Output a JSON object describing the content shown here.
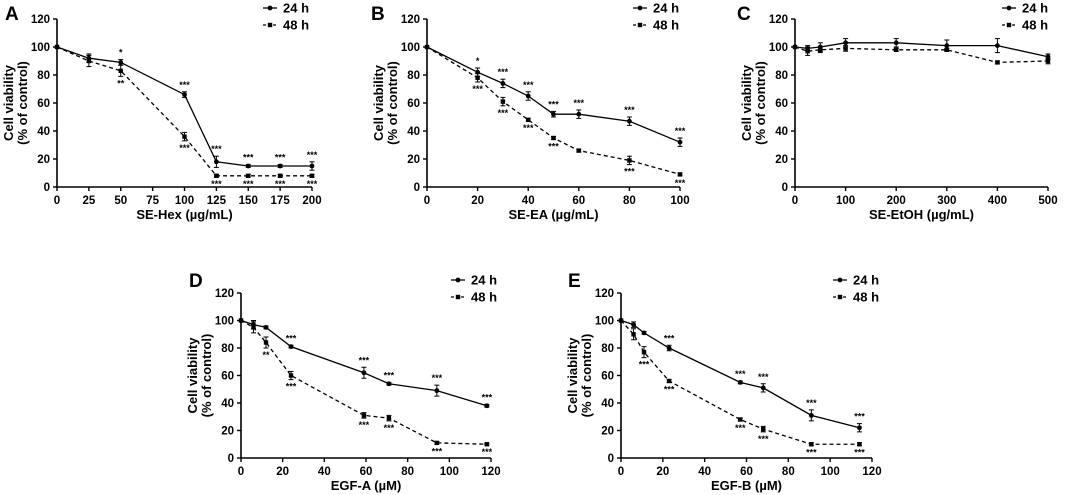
{
  "series_names": [
    "24 h",
    "48 h"
  ],
  "chart_data": [
    {
      "panel": "A",
      "type": "line",
      "xlabel": "SE-Hex (µg/mL)",
      "ylabel_line1": "Cell viability",
      "ylabel_line2": "(% of control)",
      "xlim": [
        0,
        200
      ],
      "ylim": [
        0,
        120
      ],
      "xticks": [
        0,
        25,
        50,
        75,
        100,
        125,
        150,
        175,
        200
      ],
      "yticks": [
        0,
        20,
        40,
        60,
        80,
        100,
        120
      ],
      "series": [
        {
          "name": "24 h",
          "x": [
            0,
            25,
            50,
            100,
            125,
            150,
            175,
            200
          ],
          "y": [
            100,
            92,
            89,
            66,
            18,
            15,
            15,
            15
          ],
          "err": [
            0,
            3,
            2,
            2,
            4,
            1,
            1,
            3
          ],
          "sig": [
            "",
            "",
            "*",
            "***",
            "***",
            "***",
            "***",
            "***"
          ]
        },
        {
          "name": "48 h",
          "x": [
            0,
            25,
            50,
            100,
            125,
            150,
            175,
            200
          ],
          "y": [
            100,
            90,
            83,
            36,
            8,
            8,
            8,
            8
          ],
          "err": [
            0,
            4,
            4,
            3,
            1,
            1,
            1,
            1
          ],
          "sig": [
            "",
            "",
            "**",
            "***",
            "***",
            "***",
            "***",
            "***"
          ]
        }
      ]
    },
    {
      "panel": "B",
      "type": "line",
      "xlabel": "SE-EA (µg/mL)",
      "ylabel_line1": "Cell viability",
      "ylabel_line2": "(% of control)",
      "xlim": [
        0,
        100
      ],
      "ylim": [
        0,
        120
      ],
      "xticks": [
        0,
        20,
        40,
        60,
        80,
        100
      ],
      "yticks": [
        0,
        20,
        40,
        60,
        80,
        100,
        120
      ],
      "series": [
        {
          "name": "24 h",
          "x": [
            0,
            20,
            30,
            40,
            50,
            60,
            80,
            100
          ],
          "y": [
            100,
            82,
            74,
            65,
            52,
            52,
            47,
            32
          ],
          "err": [
            0,
            3,
            3,
            3,
            2,
            3,
            3,
            3
          ],
          "sig": [
            "",
            "*",
            "***",
            "***",
            "***",
            "***",
            "***",
            "***"
          ]
        },
        {
          "name": "48 h",
          "x": [
            0,
            20,
            30,
            40,
            50,
            60,
            80,
            100
          ],
          "y": [
            100,
            78,
            61,
            48,
            35,
            26,
            19,
            9
          ],
          "err": [
            0,
            3,
            3,
            1,
            1,
            1,
            3,
            1
          ],
          "sig": [
            "",
            "***",
            "***",
            "***",
            "***",
            "",
            "***",
            "***"
          ]
        }
      ]
    },
    {
      "panel": "C",
      "type": "line",
      "xlabel": "SE-EtOH (µg/mL)",
      "ylabel_line1": "Cell viability",
      "ylabel_line2": "(% of control)",
      "xlim": [
        0,
        500
      ],
      "ylim": [
        0,
        120
      ],
      "xticks": [
        0,
        100,
        200,
        300,
        400,
        500
      ],
      "yticks": [
        0,
        20,
        40,
        60,
        80,
        100,
        120
      ],
      "series": [
        {
          "name": "24 h",
          "x": [
            0,
            25,
            50,
            100,
            200,
            300,
            400,
            500
          ],
          "y": [
            100,
            99,
            100,
            103,
            103,
            101,
            101,
            93
          ],
          "err": [
            0,
            2,
            3,
            3,
            3,
            4,
            5,
            2
          ],
          "sig": [
            "",
            "",
            "",
            "",
            "",
            "",
            "",
            ""
          ]
        },
        {
          "name": "48 h",
          "x": [
            0,
            25,
            50,
            100,
            200,
            300,
            400,
            500
          ],
          "y": [
            100,
            97,
            98,
            99,
            98,
            98,
            89,
            90
          ],
          "err": [
            0,
            3,
            2,
            2,
            1,
            1,
            1,
            2
          ],
          "sig": [
            "",
            "",
            "",
            "",
            "",
            "",
            "",
            ""
          ]
        }
      ]
    },
    {
      "panel": "D",
      "type": "line",
      "xlabel": "EGF-A (µM)",
      "ylabel_line1": "Cell viability",
      "ylabel_line2": "(% of control)",
      "xlim": [
        0,
        120
      ],
      "ylim": [
        0,
        120
      ],
      "xticks": [
        0,
        20,
        40,
        60,
        80,
        100,
        120
      ],
      "yticks": [
        0,
        20,
        40,
        60,
        80,
        100,
        120
      ],
      "series": [
        {
          "name": "24 h",
          "x": [
            0,
            6,
            12,
            24,
            59,
            71,
            94,
            118
          ],
          "y": [
            100,
            97,
            95,
            81,
            62,
            54,
            49,
            38
          ],
          "err": [
            0,
            3,
            1,
            1,
            4,
            1,
            4,
            1
          ],
          "sig": [
            "",
            "",
            "",
            "***",
            "***",
            "***",
            "***",
            "***"
          ]
        },
        {
          "name": "48 h",
          "x": [
            0,
            6,
            12,
            24,
            59,
            71,
            94,
            118
          ],
          "y": [
            100,
            95,
            84,
            60,
            31,
            29,
            11,
            10
          ],
          "err": [
            0,
            4,
            4,
            3,
            2,
            2,
            1,
            0.5
          ],
          "sig": [
            "",
            "",
            "**",
            "***",
            "***",
            "***",
            "***",
            "***"
          ]
        }
      ]
    },
    {
      "panel": "E",
      "type": "line",
      "xlabel": "EGF-B (µM)",
      "ylabel_line1": "Cell viability",
      "ylabel_line2": "(% of control)",
      "xlim": [
        0,
        120
      ],
      "ylim": [
        0,
        120
      ],
      "xticks": [
        0,
        20,
        40,
        60,
        80,
        100,
        120
      ],
      "yticks": [
        0,
        20,
        40,
        60,
        80,
        100,
        120
      ],
      "series": [
        {
          "name": "24 h",
          "x": [
            0,
            6,
            11,
            23,
            57,
            68,
            91,
            114
          ],
          "y": [
            100,
            97,
            91,
            80,
            55,
            51,
            31,
            22
          ],
          "err": [
            0,
            2,
            1,
            2,
            1,
            3,
            4,
            3
          ],
          "sig": [
            "",
            "",
            "",
            "***",
            "***",
            "***",
            "***",
            "***"
          ]
        },
        {
          "name": "48 h",
          "x": [
            0,
            6,
            11,
            23,
            57,
            68,
            91,
            114
          ],
          "y": [
            100,
            90,
            77,
            56,
            28,
            21,
            10,
            10
          ],
          "err": [
            0,
            4,
            4,
            1,
            1,
            2,
            1,
            1
          ],
          "sig": [
            "",
            "",
            "***",
            "***",
            "***",
            "***",
            "***",
            "***"
          ]
        }
      ]
    }
  ]
}
